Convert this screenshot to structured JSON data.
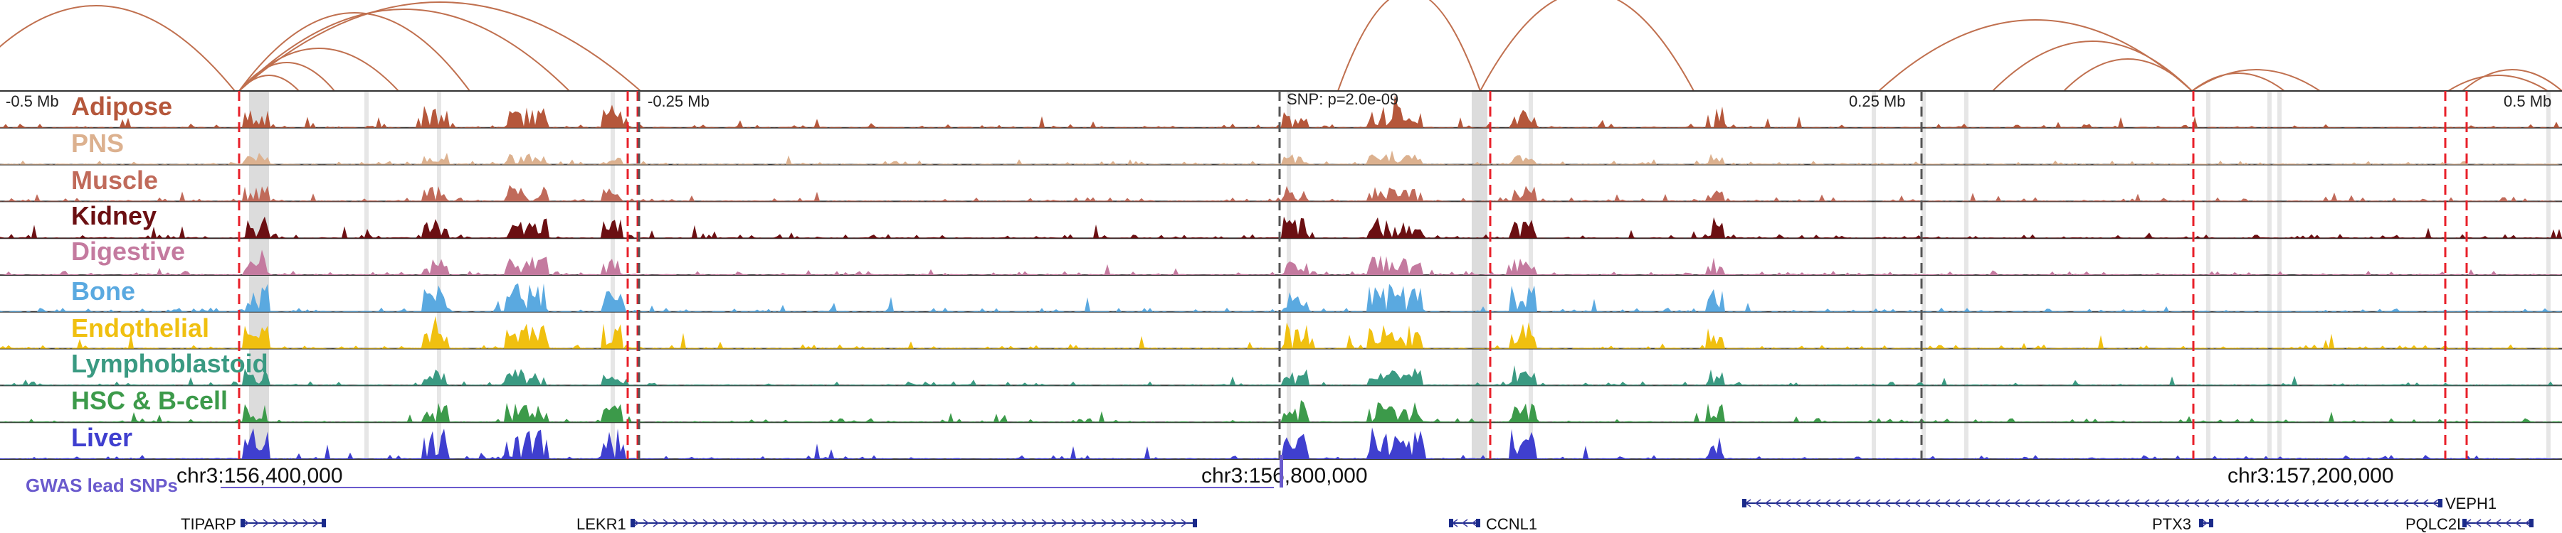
{
  "scale": {
    "labels": [
      "-0.5 Mb",
      "-0.25 Mb",
      "SNP: p=2.0e-09",
      "0.25 Mb",
      "0.5 Mb"
    ]
  },
  "tracks": [
    {
      "label": "Adipose",
      "color": "#b5573b"
    },
    {
      "label": "PNS",
      "color": "#dcb18f"
    },
    {
      "label": "Muscle",
      "color": "#c06a5a"
    },
    {
      "label": "Kidney",
      "color": "#6b0f12"
    },
    {
      "label": "Digestive",
      "color": "#c47a9f"
    },
    {
      "label": "Bone",
      "color": "#5aa9e0"
    },
    {
      "label": "Endothelial",
      "color": "#f0c010"
    },
    {
      "label": "Lymphoblastoid",
      "color": "#3a9a82"
    },
    {
      "label": "HSC & B-cell",
      "color": "#3c9a4a"
    },
    {
      "label": "Liver",
      "color": "#3f3fcf"
    }
  ],
  "coordinates": [
    "chr3:156,400,000",
    "chr3:156,800,000",
    "chr3:157,200,000"
  ],
  "gwas": {
    "label": "GWAS lead SNPs",
    "color": "#6a5acd"
  },
  "genes": [
    {
      "name": "TIPARP"
    },
    {
      "name": "LEKR1"
    },
    {
      "name": "CCNL1"
    },
    {
      "name": "VEPH1"
    },
    {
      "name": "PTX3"
    },
    {
      "name": "PQLC2L"
    }
  ],
  "colors": {
    "loop": "#c0704f",
    "highlight_line": "#e8202a",
    "track_border": "#333333"
  }
}
